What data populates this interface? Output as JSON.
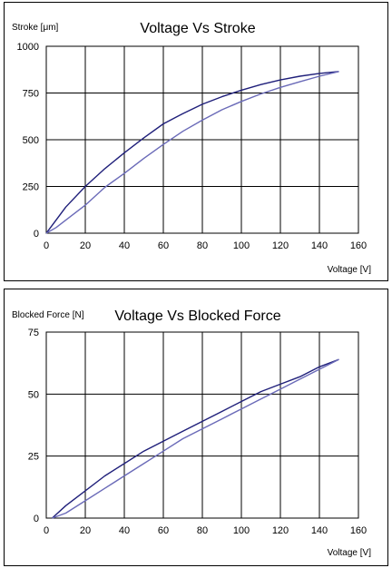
{
  "colors": {
    "trace": "#1f1f7a",
    "trace_alt": "#6a6ab8",
    "grid": "#000000"
  },
  "chart_data": [
    {
      "type": "line",
      "title": "Voltage Vs Stroke",
      "xlabel": "Voltage [V]",
      "ylabel": "Stroke [μm]",
      "xlim": [
        0,
        160
      ],
      "ylim": [
        0,
        1000
      ],
      "xticks": [
        0,
        20,
        40,
        60,
        80,
        100,
        120,
        140,
        160
      ],
      "yticks": [
        0,
        250,
        500,
        750,
        1000
      ],
      "grid": true,
      "series": [
        {
          "x": [
            0,
            5,
            10,
            20,
            30,
            40,
            50,
            60,
            70,
            80,
            90,
            100,
            110,
            120,
            130,
            140,
            150
          ],
          "y": [
            0,
            70,
            140,
            250,
            345,
            430,
            510,
            585,
            640,
            690,
            730,
            765,
            795,
            820,
            840,
            855,
            865
          ]
        },
        {
          "x": [
            150,
            140,
            130,
            120,
            110,
            100,
            90,
            80,
            70,
            60,
            50,
            40,
            30,
            20,
            10,
            5,
            0
          ],
          "y": [
            865,
            840,
            810,
            780,
            745,
            705,
            660,
            605,
            545,
            475,
            400,
            320,
            245,
            150,
            70,
            30,
            0
          ]
        }
      ]
    },
    {
      "type": "line",
      "title": "Voltage Vs Blocked Force",
      "xlabel": "Voltage [V]",
      "ylabel": "Blocked Force [N]",
      "xlim": [
        0,
        160
      ],
      "ylim": [
        0,
        75
      ],
      "xticks": [
        0,
        20,
        40,
        60,
        80,
        100,
        120,
        140,
        160
      ],
      "yticks": [
        0,
        25,
        50,
        75
      ],
      "grid": true,
      "series": [
        {
          "x": [
            3,
            10,
            20,
            30,
            40,
            50,
            60,
            70,
            80,
            90,
            100,
            110,
            120,
            130,
            140,
            150
          ],
          "y": [
            0,
            5,
            11,
            17,
            22,
            27,
            31,
            35,
            39,
            43,
            47,
            51,
            54,
            57,
            61,
            64
          ]
        },
        {
          "x": [
            150,
            140,
            130,
            120,
            110,
            100,
            90,
            80,
            70,
            60,
            50,
            40,
            30,
            20,
            10,
            3
          ],
          "y": [
            64,
            60,
            56,
            52,
            48,
            44,
            40,
            36,
            32,
            27,
            22,
            17,
            12,
            7,
            2,
            0
          ]
        }
      ]
    }
  ]
}
